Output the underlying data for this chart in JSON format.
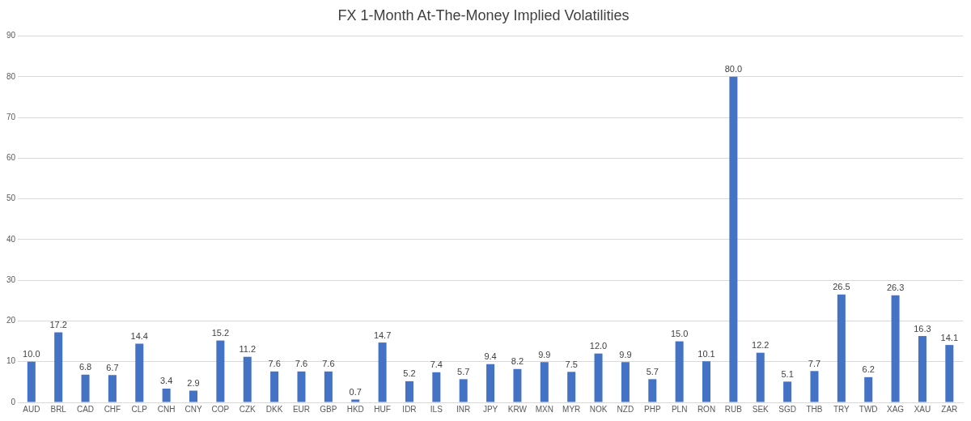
{
  "chart_data": {
    "type": "bar",
    "title": "FX 1-Month At-The-Money Implied Volatilities",
    "categories": [
      "AUD",
      "BRL",
      "CAD",
      "CHF",
      "CLP",
      "CNH",
      "CNY",
      "COP",
      "CZK",
      "DKK",
      "EUR",
      "GBP",
      "HKD",
      "HUF",
      "IDR",
      "ILS",
      "INR",
      "JPY",
      "KRW",
      "MXN",
      "MYR",
      "NOK",
      "NZD",
      "PHP",
      "PLN",
      "RON",
      "RUB",
      "SEK",
      "SGD",
      "THB",
      "TRY",
      "TWD",
      "XAG",
      "XAU",
      "ZAR"
    ],
    "values": [
      10.0,
      17.2,
      6.8,
      6.7,
      14.4,
      3.4,
      2.9,
      15.2,
      11.2,
      7.6,
      7.6,
      7.6,
      0.7,
      14.7,
      5.2,
      7.4,
      5.7,
      9.4,
      8.2,
      9.9,
      7.5,
      12.0,
      9.9,
      5.7,
      15.0,
      10.1,
      80.0,
      12.2,
      5.1,
      7.7,
      26.5,
      6.2,
      26.3,
      16.3,
      14.1
    ],
    "value_labels": [
      "10.0",
      "17.2",
      "6.8",
      "6.7",
      "14.4",
      "3.4",
      "2.9",
      "15.2",
      "11.2",
      "7.6",
      "7.6",
      "7.6",
      "0.7",
      "14.7",
      "5.2",
      "7.4",
      "5.7",
      "9.4",
      "8.2",
      "9.9",
      "7.5",
      "12.0",
      "9.9",
      "5.7",
      "15.0",
      "10.1",
      "80.0",
      "12.2",
      "5.1",
      "7.7",
      "26.5",
      "6.2",
      "26.3",
      "16.3",
      "14.1"
    ],
    "color": "#4472c4",
    "ylim": [
      0,
      90
    ],
    "yticks": [
      0,
      10,
      20,
      30,
      40,
      50,
      60,
      70,
      80,
      90
    ],
    "grid": "y",
    "legend": false
  }
}
